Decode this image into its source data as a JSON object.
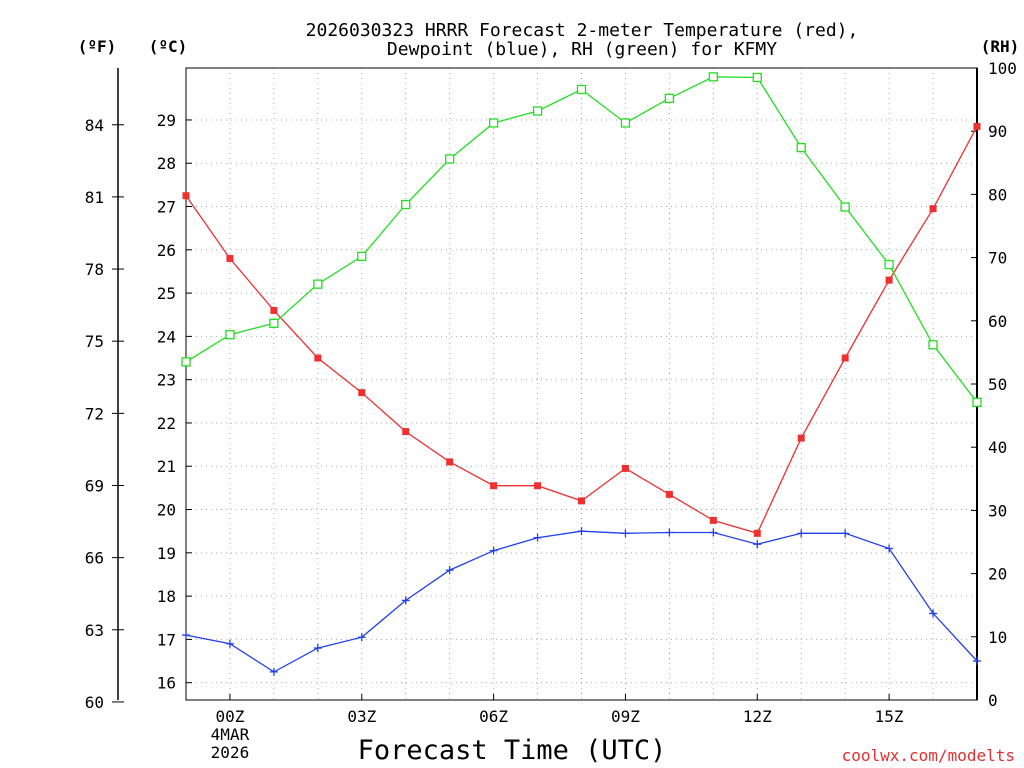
{
  "chart_data": {
    "type": "line",
    "title_line1": "2026030323 HRRR Forecast 2-meter Temperature (red),",
    "title_line2": "Dewpoint (blue), RH (green) for KFMY",
    "xlabel": "Forecast Time (UTC)",
    "x_ticks": [
      "00Z",
      "03Z",
      "06Z",
      "09Z",
      "12Z",
      "15Z"
    ],
    "x_tick_hours": [
      0,
      3,
      6,
      9,
      12,
      15
    ],
    "x_date_line1": "4MAR",
    "x_date_line2": "2026",
    "x": [
      -1,
      0,
      1,
      2,
      3,
      4,
      5,
      6,
      7,
      8,
      9,
      10,
      11,
      12,
      13,
      14,
      15,
      16,
      17
    ],
    "xlim": [
      -1,
      17
    ],
    "left_unit_f": "(ºF)",
    "left_unit_c": "(ºC)",
    "right_unit": "(RH)",
    "ylim_c": [
      15.6,
      30.2
    ],
    "ylim_rh": [
      0,
      100
    ],
    "yticks_c": [
      "16",
      "17",
      "18",
      "19",
      "20",
      "21",
      "22",
      "23",
      "24",
      "25",
      "26",
      "27",
      "28",
      "29"
    ],
    "yticks_f": [
      "60",
      "63",
      "66",
      "69",
      "72",
      "75",
      "78",
      "81",
      "84"
    ],
    "yticks_rh": [
      "0",
      "10",
      "20",
      "30",
      "40",
      "50",
      "60",
      "70",
      "80",
      "90",
      "100"
    ],
    "series": [
      {
        "name": "Temperature",
        "color": "#ee3030",
        "marker": "filled-square",
        "unit": "C",
        "values": [
          27.25,
          25.8,
          24.6,
          23.5,
          22.7,
          21.8,
          21.1,
          20.55,
          20.55,
          20.2,
          20.95,
          20.35,
          19.75,
          19.45,
          21.65,
          23.5,
          25.3,
          26.95,
          28.85
        ]
      },
      {
        "name": "Dewpoint",
        "color": "#2040ee",
        "marker": "plus",
        "unit": "C",
        "values": [
          17.1,
          16.9,
          16.25,
          16.8,
          17.05,
          17.9,
          18.6,
          19.05,
          19.35,
          19.5,
          19.45,
          19.47,
          19.47,
          19.2,
          19.45,
          19.45,
          19.1,
          17.6,
          16.5
        ]
      },
      {
        "name": "RH",
        "color": "#22dd22",
        "marker": "open-square",
        "unit": "%",
        "values": [
          53.5,
          57.8,
          59.6,
          65.8,
          70.2,
          78.4,
          85.6,
          91.3,
          93.2,
          96.6,
          91.3,
          95.2,
          98.6,
          98.5,
          87.4,
          78.0,
          68.9,
          56.2,
          47.1
        ]
      }
    ],
    "grid": true
  },
  "watermark": "coolwx.com/modelts"
}
